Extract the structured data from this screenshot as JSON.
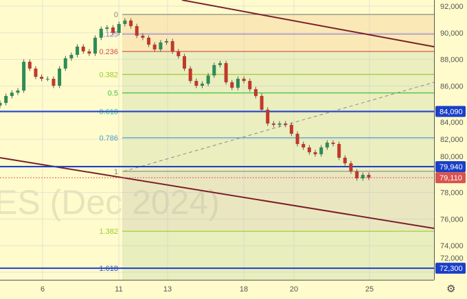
{
  "symbol_watermark": "ES (Dec 2024)",
  "chart_data": {
    "type": "candlestick",
    "price_axis": {
      "ticks": [
        "92,000",
        "90,000",
        "88,000",
        "86,000",
        "84,000",
        "82,000",
        "80,000",
        "78,000",
        "76,000",
        "74,000",
        "72,000"
      ],
      "tick_values": [
        92000,
        90000,
        88000,
        86000,
        84000,
        82000,
        80000,
        78000,
        76000,
        74000,
        72000
      ],
      "range": [
        71000,
        92500
      ]
    },
    "time_axis": {
      "ticks": [
        "6",
        "11",
        "13",
        "18",
        "20",
        "25"
      ]
    },
    "closes": [
      84730,
      85250,
      85500,
      85660,
      87820,
      87310,
      86690,
      86540,
      86540,
      86020,
      87310,
      88080,
      88340,
      88960,
      88600,
      88440,
      89630,
      90300,
      90400,
      89990,
      90660,
      90920,
      90500,
      89780,
      89630,
      89110,
      88750,
      89270,
      89370,
      88600,
      88240,
      87310,
      86380,
      86020,
      86170,
      86790,
      87570,
      87720,
      86280,
      85870,
      86540,
      86380,
      85760,
      85250,
      84220,
      83180,
      83080,
      83180,
      83080,
      82410,
      81640,
      81380,
      81020,
      80870,
      81380,
      81740,
      81640,
      80610,
      80190,
      79580,
      79060,
      79320,
      79110
    ],
    "fibonacci": {
      "price_0": 91376,
      "price_1": 79586,
      "levels": [
        {
          "label": "0",
          "value": 0,
          "color": "#8a8a80"
        },
        {
          "label": "0.125",
          "value": 0.125,
          "color": "#8c74d8"
        },
        {
          "label": "0.236",
          "value": 0.236,
          "color": "#d24d4a"
        },
        {
          "label": "0.382",
          "value": 0.382,
          "color": "#9ccc2c"
        },
        {
          "label": "0.5",
          "value": 0.5,
          "color": "#3ac43a"
        },
        {
          "label": "0.618",
          "value": 0.618,
          "color": "#2fbfa0"
        },
        {
          "label": "0.786",
          "value": 0.786,
          "color": "#4a9fd4"
        },
        {
          "label": "1",
          "value": 1,
          "color": "#8a8a80"
        },
        {
          "label": "1.382",
          "value": 1.382,
          "color": "#9ccc2c"
        },
        {
          "label": "1.618",
          "value": 1.618,
          "color": "#3a4fd0"
        }
      ]
    },
    "horizontal_lines": [
      {
        "price": 84090,
        "label": "84,090",
        "color": "#1a3fc8"
      },
      {
        "price": 79940,
        "label": "79,940",
        "color": "#1a3fc8"
      },
      {
        "price": 72300,
        "label": "72,300",
        "color": "#1a3fc8"
      }
    ],
    "last_price": {
      "price": 79110,
      "label": "79,110",
      "color": "#d9534f"
    },
    "trend_lines": [
      {
        "name": "upper-channel",
        "start_price": 92460,
        "end_price": 88950,
        "color": "#7a1f2a"
      },
      {
        "name": "lower-channel",
        "start_price": 80610,
        "end_price": 75300,
        "color": "#7a1f2a"
      },
      {
        "name": "dashed-trend",
        "start_price": 79580,
        "end_price": 86280,
        "color": "#8a8a8a"
      }
    ],
    "colors": {
      "up": "#2e8b57",
      "down": "#c0392b",
      "background": "#fffbcc"
    }
  }
}
